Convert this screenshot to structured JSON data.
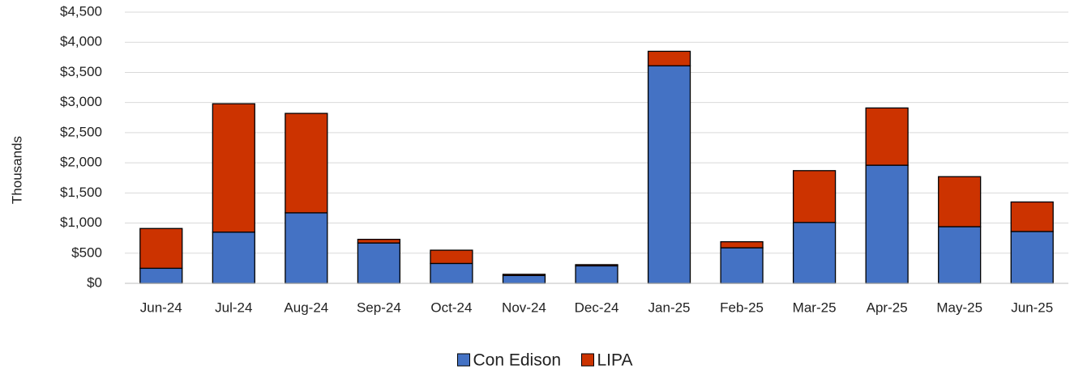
{
  "chart_data": {
    "type": "stacked_bar",
    "y_label": "Thousands",
    "categories": [
      "Jun-24",
      "Jul-24",
      "Aug-24",
      "Sep-24",
      "Oct-24",
      "Nov-24",
      "Dec-24",
      "Jan-25",
      "Feb-25",
      "Mar-25",
      "Apr-25",
      "May-25",
      "Jun-25"
    ],
    "series": [
      {
        "name": "Con Edison",
        "color": "#4472c4",
        "values": [
          250,
          850,
          1170,
          670,
          330,
          130,
          290,
          3610,
          590,
          1010,
          1960,
          940,
          860
        ]
      },
      {
        "name": "LIPA",
        "color": "#cc3300",
        "values": [
          660,
          2130,
          1650,
          60,
          220,
          20,
          20,
          240,
          100,
          860,
          950,
          830,
          490
        ]
      }
    ],
    "ylim": [
      0,
      4500
    ],
    "yticks": [
      {
        "value": 0,
        "label": "$0"
      },
      {
        "value": 500,
        "label": "$500"
      },
      {
        "value": 1000,
        "label": "$1,000"
      },
      {
        "value": 1500,
        "label": "$1,500"
      },
      {
        "value": 2000,
        "label": "$2,000"
      },
      {
        "value": 2500,
        "label": "$2,500"
      },
      {
        "value": 3000,
        "label": "$3,000"
      },
      {
        "value": 3500,
        "label": "$3,500"
      },
      {
        "value": 4000,
        "label": "$4,000"
      },
      {
        "value": 4500,
        "label": "$4,500"
      }
    ],
    "grid": true,
    "legend": "bottom"
  }
}
